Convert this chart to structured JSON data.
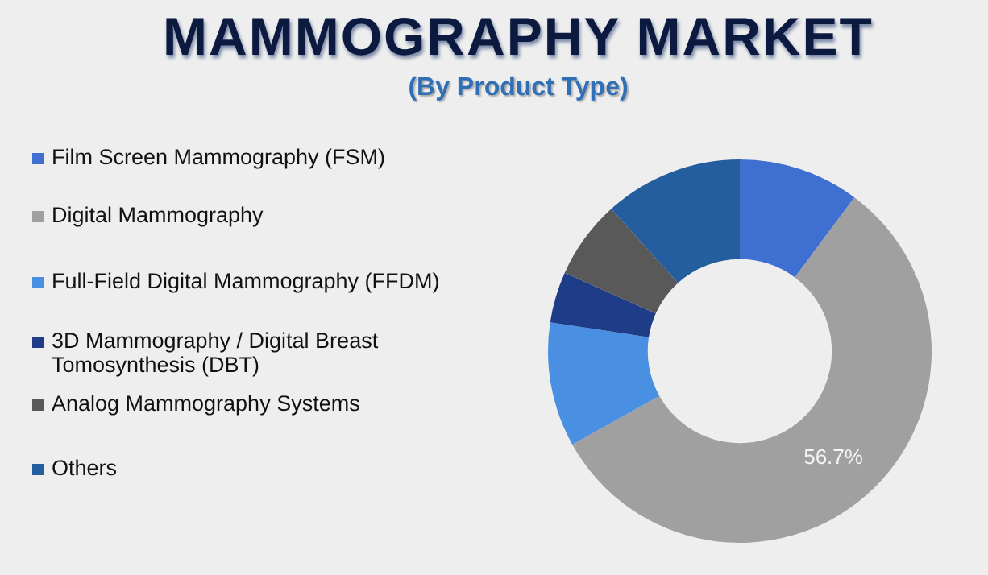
{
  "chart_data": {
    "type": "donut",
    "title": "MAMMOGRAPHY MARKET",
    "subtitle": "(By Product Type)",
    "categories": [
      "Film Screen Mammography (FSM)",
      "Digital Mammography",
      "Full-Field Digital Mammography (FFDM)",
      "3D Mammography / Digital Breast Tomosynthesis (DBT)",
      "Analog Mammography Systems",
      "Others"
    ],
    "values": [
      10.2,
      56.7,
      10.5,
      4.3,
      6.6,
      11.7
    ],
    "value_labels": [
      null,
      "56.7%",
      null,
      null,
      null,
      null
    ],
    "colors": [
      "#3f6fd0",
      "#a0a0a0",
      "#4a90e2",
      "#1f3c88",
      "#595959",
      "#255e9e"
    ],
    "legend": "left"
  }
}
